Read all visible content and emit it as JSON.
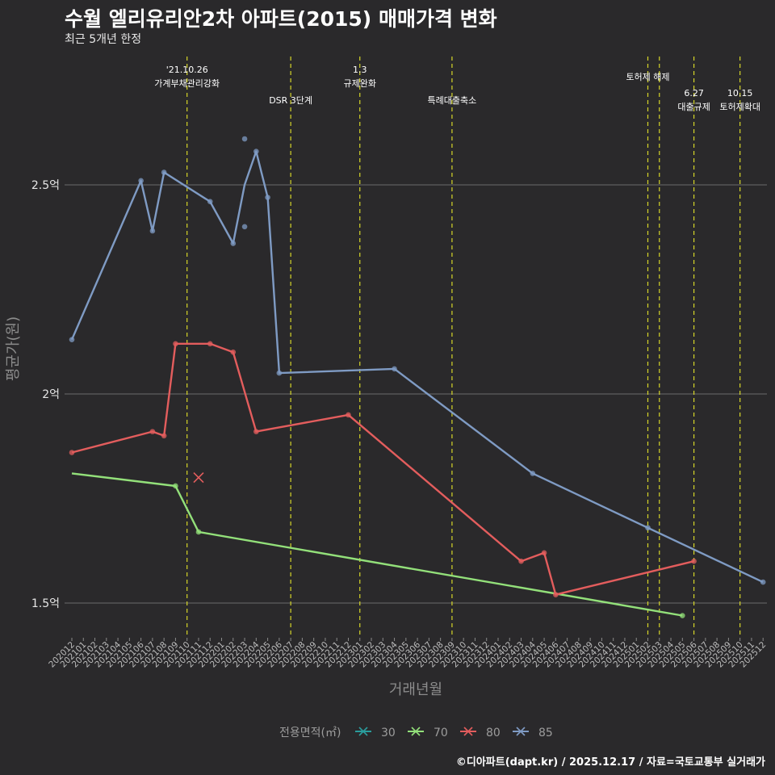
{
  "title": "수월 엘리유리안2차 아파트(2015) 매매가격 변화",
  "subtitle": "최근 5개년 한정",
  "caption": "©디아파트(dapt.kr) / 2025.12.17 / 자료=국토교통부 실거래가",
  "colors": {
    "background": "#2a292b",
    "grid": "#6b6b6b",
    "event_line": "#d6d629",
    "s30": "#2a9d9d",
    "s70": "#93e07a",
    "s80": "#e35d5d",
    "s85": "#7f9bc4"
  },
  "chart_data": {
    "type": "line",
    "title": "수월 엘리유리안2차 아파트(2015) 매매가격 변화",
    "subtitle": "최근 5개년 한정",
    "xlabel": "거래년월",
    "ylabel": "평균가(원)",
    "ylim": [
      1.42,
      2.85
    ],
    "y_unit": "억",
    "y_ticks": [
      {
        "value": 1.5,
        "label": "1.5억"
      },
      {
        "value": 2.0,
        "label": "2억"
      },
      {
        "value": 2.5,
        "label": "2.5억"
      }
    ],
    "x_months": [
      "202012",
      "202101",
      "202102",
      "202103",
      "202104",
      "202105",
      "202106",
      "202107",
      "202108",
      "202109",
      "202110",
      "202111",
      "202112",
      "202201",
      "202202",
      "202203",
      "202204",
      "202205",
      "202206",
      "202207",
      "202208",
      "202209",
      "202210",
      "202211",
      "202212",
      "202301",
      "202302",
      "202303",
      "202304",
      "202305",
      "202306",
      "202307",
      "202308",
      "202309",
      "202310",
      "202311",
      "202312",
      "202401",
      "202402",
      "202403",
      "202404",
      "202405",
      "202406",
      "202407",
      "202408",
      "202409",
      "202410",
      "202411",
      "202412",
      "202501",
      "202502",
      "202503",
      "202504",
      "202505",
      "202506",
      "202507",
      "202508",
      "202509",
      "202510",
      "202511",
      "202512"
    ],
    "events": [
      {
        "month": "202110",
        "label": "'21.10.26\n가계부채관리강화",
        "row": 0
      },
      {
        "month": "202207",
        "label": "DSR 3단계",
        "row": 2
      },
      {
        "month": "202301",
        "label": "1.3\n규제완화",
        "row": 0
      },
      {
        "month": "202309",
        "label": "특례대출축소",
        "row": 2
      },
      {
        "month": "202502",
        "label": "토허제 해제",
        "row": 1
      },
      {
        "month": "202503",
        "label": "",
        "row": 1
      },
      {
        "month": "202506",
        "label": "6.27\n대출규제",
        "row": 3
      },
      {
        "month": "202510",
        "label": "10.15\n토허제확대",
        "row": 3
      }
    ],
    "legend_title": "전용면적(㎡)",
    "series": [
      {
        "name": "30",
        "color_key": "s30",
        "line": [],
        "points": []
      },
      {
        "name": "70",
        "color_key": "s70",
        "line": [
          [
            "202012",
            1.81
          ],
          [
            "202109",
            1.78
          ],
          [
            "202111",
            1.67
          ],
          [
            "202505",
            1.47
          ]
        ],
        "points": [
          [
            "202109",
            1.78
          ],
          [
            "202111",
            1.67
          ],
          [
            "202505",
            1.47
          ]
        ]
      },
      {
        "name": "80",
        "color_key": "s80",
        "line": [
          [
            "202012",
            1.86
          ],
          [
            "202107",
            1.91
          ],
          [
            "202108",
            1.9
          ],
          [
            "202109",
            2.12
          ],
          [
            "202112",
            2.12
          ],
          [
            "202202",
            2.1
          ],
          [
            "202204",
            1.91
          ],
          [
            "202212",
            1.95
          ],
          [
            "202403",
            1.6
          ],
          [
            "202405",
            1.62
          ],
          [
            "202406",
            1.52
          ],
          [
            "202506",
            1.6
          ]
        ],
        "points": [
          [
            "202012",
            1.86
          ],
          [
            "202107",
            1.91
          ],
          [
            "202108",
            1.9
          ],
          [
            "202109",
            2.12
          ],
          [
            "202112",
            2.12
          ],
          [
            "202202",
            2.1
          ],
          [
            "202204",
            1.91
          ],
          [
            "202212",
            1.95
          ],
          [
            "202403",
            1.6
          ],
          [
            "202405",
            1.62
          ],
          [
            "202406",
            1.52
          ],
          [
            "202506",
            1.6
          ]
        ],
        "cross_markers": [
          [
            "202111",
            1.8
          ]
        ]
      },
      {
        "name": "85",
        "color_key": "s85",
        "line": [
          [
            "202012",
            2.13
          ],
          [
            "202106",
            2.51
          ],
          [
            "202107",
            2.39
          ],
          [
            "202108",
            2.53
          ],
          [
            "202112",
            2.46
          ],
          [
            "202202",
            2.36
          ],
          [
            "202203",
            2.5
          ],
          [
            "202204",
            2.58
          ],
          [
            "202205",
            2.47
          ],
          [
            "202206",
            2.05
          ],
          [
            "202304",
            2.06
          ],
          [
            "202404",
            1.81
          ],
          [
            "202502",
            1.68
          ],
          [
            "202512",
            1.55
          ]
        ],
        "points": [
          [
            "202012",
            2.13
          ],
          [
            "202106",
            2.51
          ],
          [
            "202107",
            2.39
          ],
          [
            "202108",
            2.53
          ],
          [
            "202112",
            2.46
          ],
          [
            "202202",
            2.36
          ],
          [
            "202203",
            2.61
          ],
          [
            "202203",
            2.4
          ],
          [
            "202204",
            2.58
          ],
          [
            "202205",
            2.47
          ],
          [
            "202206",
            2.05
          ],
          [
            "202304",
            2.06
          ],
          [
            "202404",
            1.81
          ],
          [
            "202502",
            1.68
          ],
          [
            "202512",
            1.55
          ]
        ]
      }
    ]
  }
}
